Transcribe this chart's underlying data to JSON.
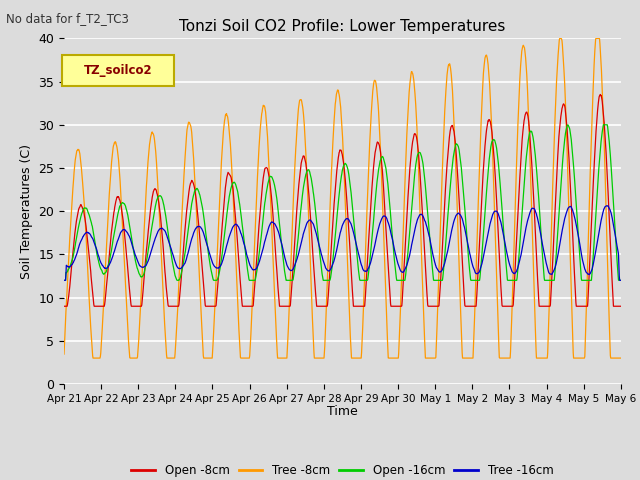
{
  "title": "Tonzi Soil CO2 Profile: Lower Temperatures",
  "subtitle": "No data for f_T2_TC3",
  "ylabel": "Soil Temperatures (C)",
  "xlabel": "Time",
  "ylim": [
    0,
    40
  ],
  "yticks": [
    0,
    5,
    10,
    15,
    20,
    25,
    30,
    35,
    40
  ],
  "xtick_labels": [
    "Apr 21",
    "Apr 22",
    "Apr 23",
    "Apr 24",
    "Apr 25",
    "Apr 26",
    "Apr 27",
    "Apr 28",
    "Apr 29",
    "Apr 30",
    "May 1",
    "May 2",
    "May 3",
    "May 4",
    "May 5",
    "May 6"
  ],
  "bg_color": "#dcdcdc",
  "grid_color": "#ffffff",
  "series_colors": [
    "#dd0000",
    "#ff9900",
    "#00cc00",
    "#0000cc"
  ],
  "series_names": [
    "Open -8cm",
    "Tree -8cm",
    "Open -16cm",
    "Tree -16cm"
  ],
  "legend_box_facecolor": "#ffff99",
  "legend_box_edgecolor": "#bbaa00",
  "legend_box_text": "TZ_soilco2",
  "legend_box_text_color": "#880000"
}
